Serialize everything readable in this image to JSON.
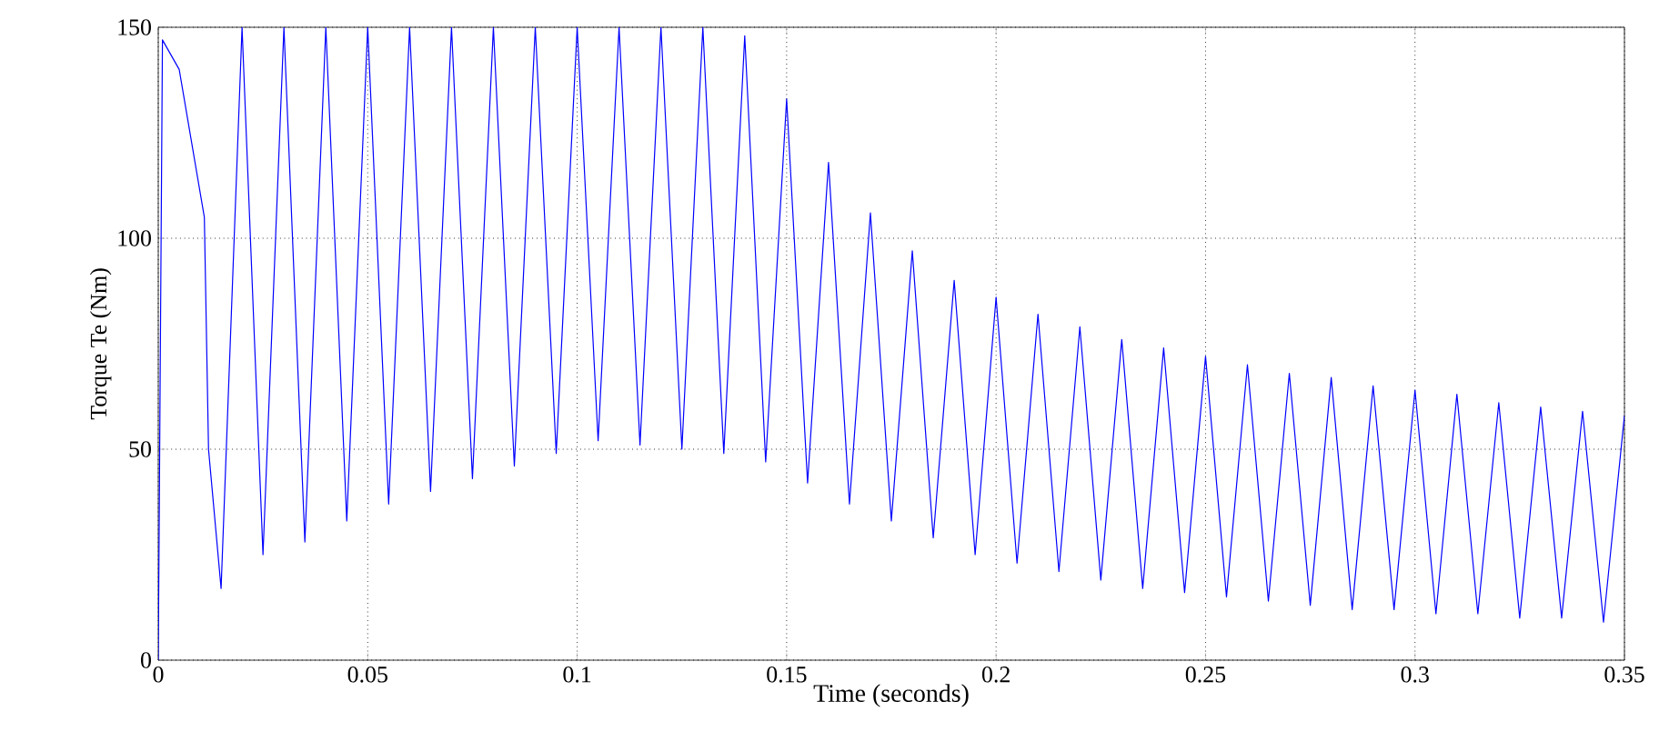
{
  "chart_data": {
    "type": "line",
    "xlabel": "Time (seconds)",
    "ylabel": "Torque Te (Nm)",
    "xlim": [
      0,
      0.35
    ],
    "ylim": [
      0,
      150
    ],
    "xticks": [
      0,
      0.05,
      0.1,
      0.15,
      0.2,
      0.25,
      0.3,
      0.35
    ],
    "yticks": [
      0,
      50,
      100,
      150
    ],
    "grid": true,
    "line_style": "solid",
    "marker": "none",
    "series": [
      {
        "color": "#0000ff",
        "x": [
          0,
          0.001,
          0.005,
          0.011,
          0.012,
          0.015,
          0.02,
          0.025,
          0.03,
          0.035,
          0.04,
          0.045,
          0.05,
          0.055,
          0.06,
          0.065,
          0.07,
          0.075,
          0.08,
          0.085,
          0.09,
          0.095,
          0.1,
          0.105,
          0.11,
          0.115,
          0.12,
          0.125,
          0.13,
          0.135,
          0.14,
          0.145,
          0.15,
          0.155,
          0.16,
          0.165,
          0.17,
          0.175,
          0.18,
          0.185,
          0.19,
          0.195,
          0.2,
          0.205,
          0.21,
          0.215,
          0.22,
          0.225,
          0.23,
          0.235,
          0.24,
          0.245,
          0.25,
          0.255,
          0.26,
          0.265,
          0.27,
          0.275,
          0.28,
          0.285,
          0.29,
          0.295,
          0.3,
          0.305,
          0.31,
          0.315,
          0.32,
          0.325,
          0.33,
          0.335,
          0.34,
          0.345,
          0.35
        ],
        "values": [
          0,
          147,
          140,
          105,
          50,
          17,
          150,
          25,
          150,
          28,
          150,
          33,
          150,
          37,
          150,
          40,
          150,
          43,
          150,
          46,
          150,
          49,
          150,
          52,
          150,
          51,
          150,
          50,
          150,
          49,
          148,
          47,
          133,
          42,
          118,
          37,
          106,
          33,
          97,
          29,
          90,
          25,
          86,
          23,
          82,
          21,
          79,
          19,
          76,
          17,
          74,
          16,
          72,
          15,
          70,
          14,
          68,
          13,
          67,
          12,
          65,
          12,
          64,
          11,
          63,
          11,
          61,
          10,
          60,
          10,
          59,
          9,
          58
        ]
      }
    ]
  }
}
